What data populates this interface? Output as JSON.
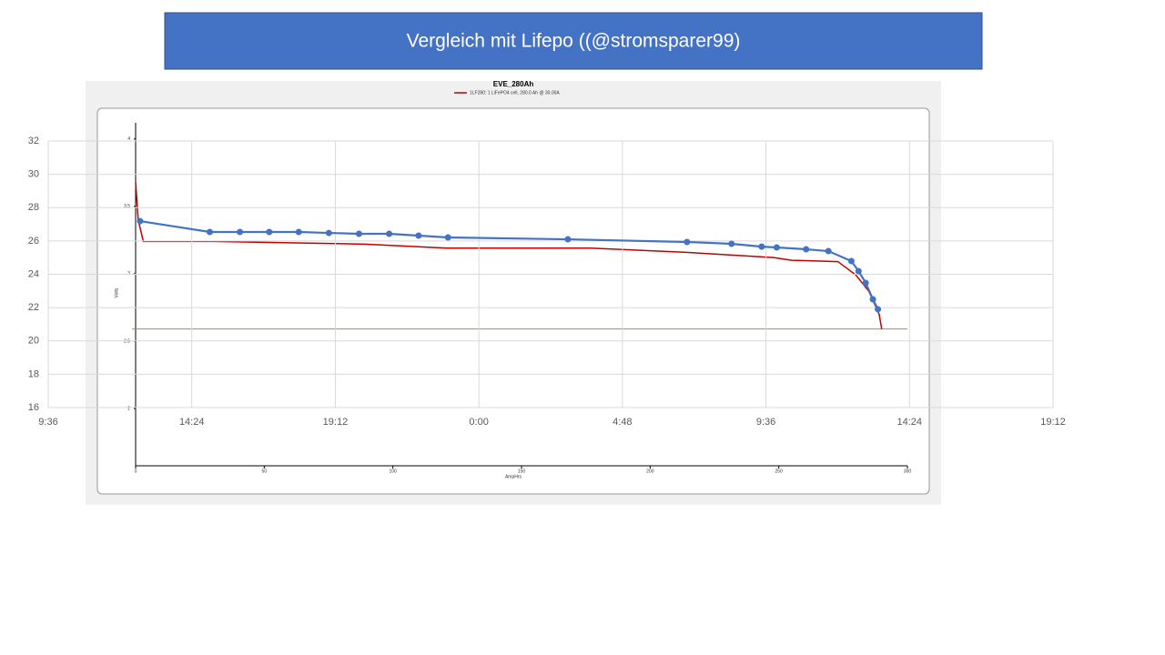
{
  "slide_title": "Vergleich mit Lifepo ((@stromsparer99)",
  "chart_data": [
    {
      "type": "line",
      "title": "EVE_280Ah",
      "x_label": "AmpHrs",
      "y_label": "Volts",
      "xlim": [
        0,
        300
      ],
      "xticks": [
        0,
        50,
        100,
        150,
        200,
        250,
        300
      ],
      "ylim": [
        1.575,
        4.12
      ],
      "yticks": [
        2,
        2.5,
        3,
        3.5,
        4
      ],
      "reference_line": 2.59,
      "reference_color": "#70ad47",
      "series": [
        {
          "name": "1LF280: 1 LiFePO4 cell, 280.0 Ah @ 30.00A",
          "color": "#c00000",
          "x": [
            0,
            1,
            3,
            30,
            89,
            121,
            177,
            213,
            248,
            255,
            273,
            280,
            285,
            289,
            290
          ],
          "values": [
            3.68,
            3.4,
            3.24,
            3.24,
            3.22,
            3.19,
            3.19,
            3.16,
            3.12,
            3.1,
            3.09,
            2.99,
            2.87,
            2.7,
            2.59
          ]
        }
      ]
    },
    {
      "type": "line",
      "xlim": [
        0.4,
        1.8
      ],
      "xticks": [
        {
          "value": 0.4,
          "label": "9:36"
        },
        {
          "value": 0.6,
          "label": "14:24"
        },
        {
          "value": 0.8,
          "label": "19:12"
        },
        {
          "value": 1.0,
          "label": "0:00"
        },
        {
          "value": 1.2,
          "label": "4:48"
        },
        {
          "value": 1.4,
          "label": "9:36"
        },
        {
          "value": 1.6,
          "label": "14:24"
        },
        {
          "value": 1.8,
          "label": "19:12"
        }
      ],
      "ylim": [
        16,
        32
      ],
      "yticks": [
        16,
        18,
        20,
        22,
        24,
        26,
        28,
        30,
        32
      ],
      "grid": true,
      "series": [
        {
          "color": "#4472c4",
          "markers": true,
          "x": [
            0.528,
            0.625,
            0.667,
            0.708,
            0.749,
            0.791,
            0.833,
            0.875,
            0.916,
            0.957,
            1.124,
            1.29,
            1.352,
            1.394,
            1.415,
            1.456,
            1.487,
            1.519,
            1.529,
            1.539,
            1.549,
            1.556
          ],
          "values": [
            27.19,
            26.54,
            26.54,
            26.54,
            26.54,
            26.48,
            26.43,
            26.43,
            26.32,
            26.21,
            26.1,
            25.94,
            25.83,
            25.66,
            25.61,
            25.5,
            25.39,
            24.79,
            24.19,
            23.48,
            22.5,
            21.9
          ]
        }
      ]
    }
  ]
}
